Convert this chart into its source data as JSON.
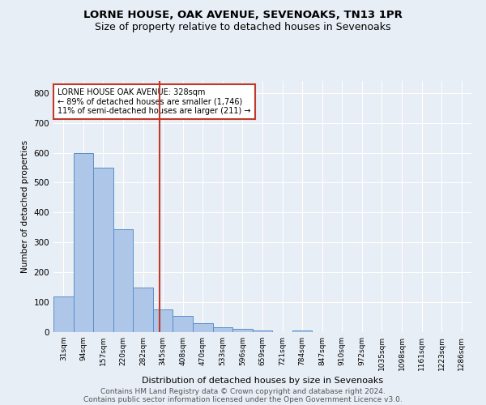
{
  "title1": "LORNE HOUSE, OAK AVENUE, SEVENOAKS, TN13 1PR",
  "title2": "Size of property relative to detached houses in Sevenoaks",
  "xlabel": "Distribution of detached houses by size in Sevenoaks",
  "ylabel": "Number of detached properties",
  "categories": [
    "31sqm",
    "94sqm",
    "157sqm",
    "220sqm",
    "282sqm",
    "345sqm",
    "408sqm",
    "470sqm",
    "533sqm",
    "596sqm",
    "659sqm",
    "721sqm",
    "784sqm",
    "847sqm",
    "910sqm",
    "972sqm",
    "1035sqm",
    "1098sqm",
    "1161sqm",
    "1223sqm",
    "1286sqm"
  ],
  "values": [
    120,
    600,
    550,
    345,
    150,
    75,
    55,
    30,
    15,
    10,
    5,
    0,
    5,
    0,
    0,
    0,
    0,
    0,
    0,
    0,
    0
  ],
  "bar_color": "#aec6e8",
  "bar_edge_color": "#5b8fc9",
  "vline_color": "#c0392b",
  "annotation_text": "LORNE HOUSE OAK AVENUE: 328sqm\n← 89% of detached houses are smaller (1,746)\n11% of semi-detached houses are larger (211) →",
  "annotation_box_color": "#c0392b",
  "ylim": [
    0,
    840
  ],
  "yticks": [
    0,
    100,
    200,
    300,
    400,
    500,
    600,
    700,
    800
  ],
  "footer1": "Contains HM Land Registry data © Crown copyright and database right 2024.",
  "footer2": "Contains public sector information licensed under the Open Government Licence v3.0.",
  "bg_color": "#e8eef5",
  "plot_bg_color": "#e8eef5",
  "grid_color": "#ffffff",
  "title_fontsize": 9.5,
  "subtitle_fontsize": 9,
  "footer_fontsize": 6.5
}
